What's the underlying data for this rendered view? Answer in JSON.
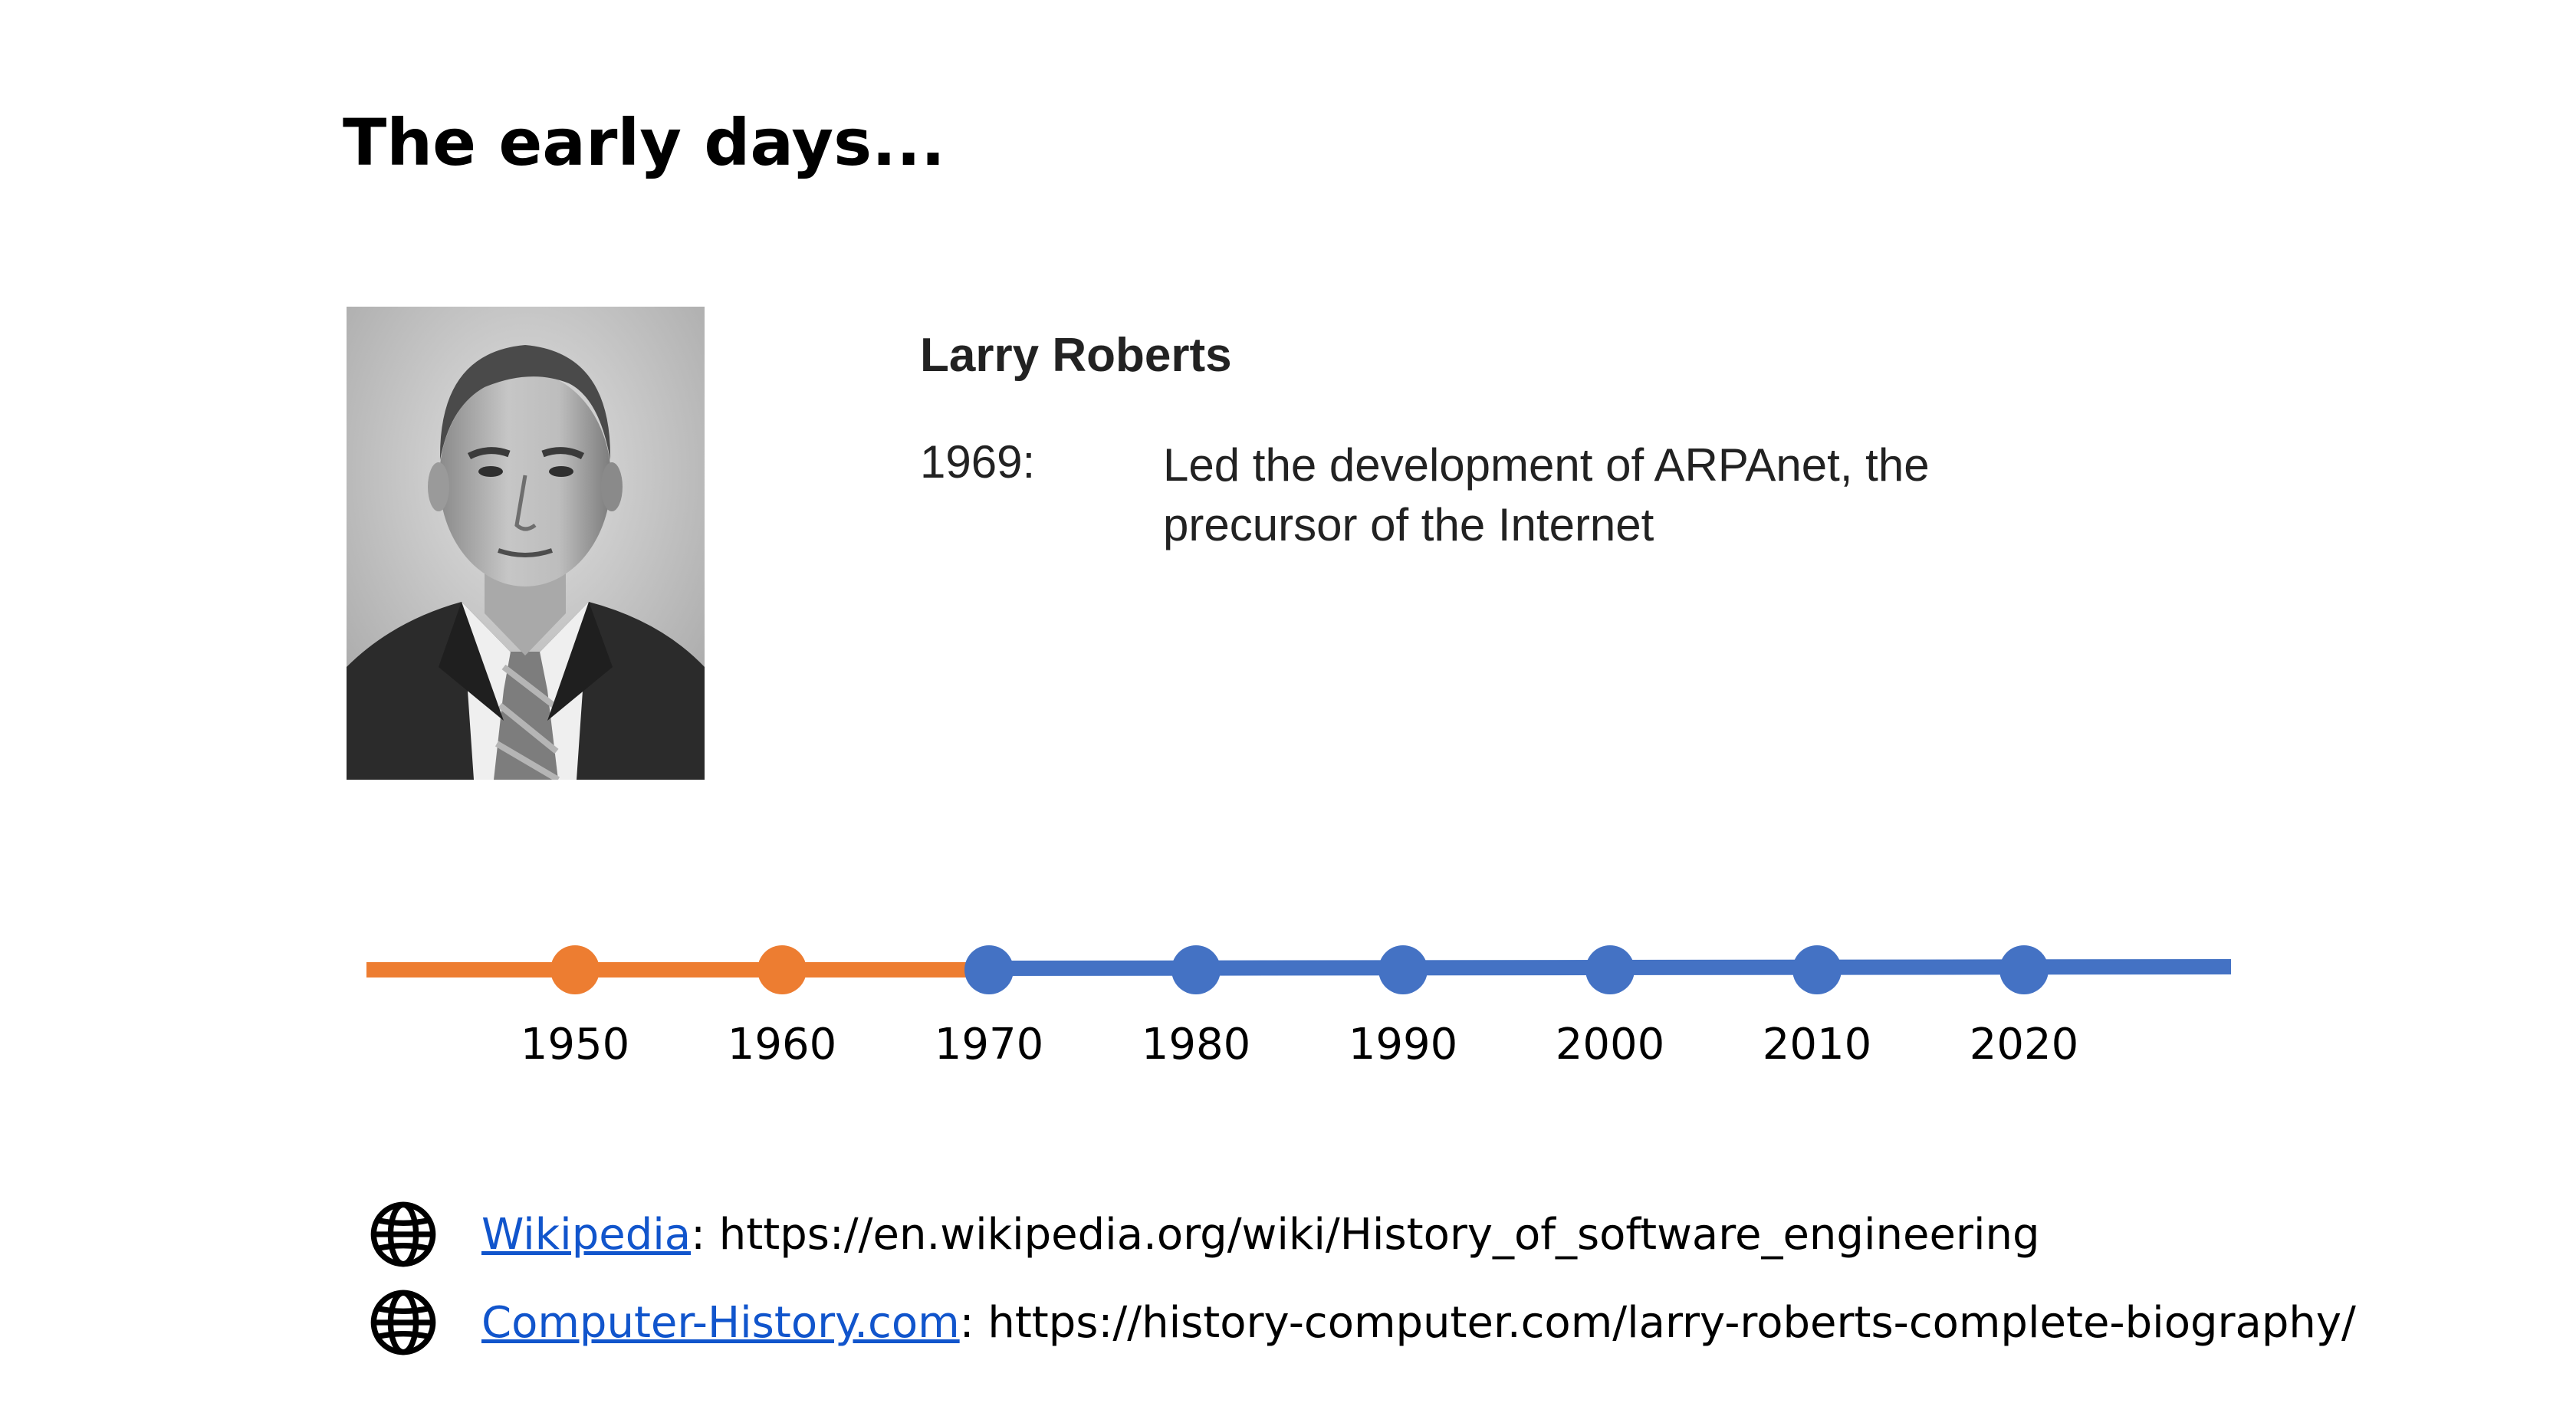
{
  "slide": {
    "title": "The early days..."
  },
  "person": {
    "name": "Larry Roberts",
    "event_year": "1969:",
    "event_description": "Led the development of ARPAnet, the precursor of the Internet"
  },
  "timeline": {
    "past_color": "#ed7d31",
    "future_color": "#4472c4",
    "years": [
      "1950",
      "1960",
      "1970",
      "1980",
      "1990",
      "2000",
      "2010",
      "2020"
    ],
    "highlighted_through": "1960"
  },
  "references": [
    {
      "icon": "globe-icon",
      "link_text": "Wikipedia",
      "separator": ":",
      "url": "https://en.wikipedia.org/wiki/History_of_software_engineering"
    },
    {
      "icon": "globe-icon",
      "link_text": "Computer-History.com",
      "separator": ":",
      "url": "https://history-computer.com/larry-roberts-complete-biography/"
    }
  ]
}
